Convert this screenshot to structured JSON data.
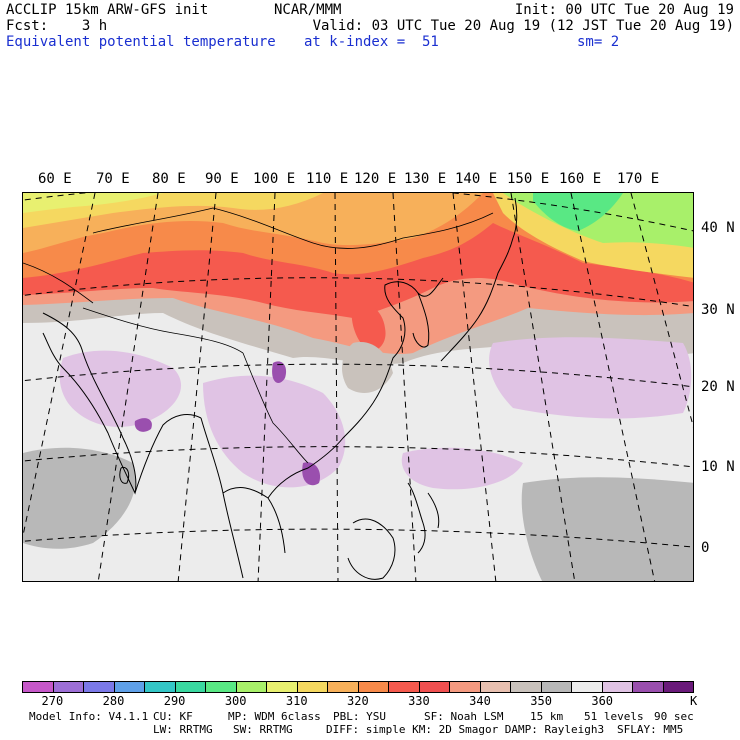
{
  "header": {
    "model": "ACCLIP 15km ARW-GFS init",
    "forecast": "Fcst:    3 h",
    "field": "Equivalent potential temperature",
    "center": "NCAR/MMM",
    "init": "Init: 00 UTC Tue 20 Aug 19",
    "valid": "Valid: 03 UTC Tue 20 Aug 19 (12 JST Tue 20 Aug 19)",
    "level": "at k-index =  51",
    "smoothing": "sm= 2"
  },
  "map": {
    "lon_labels": [
      "60 E",
      "70 E",
      "80 E",
      "90 E",
      "100 E",
      "110 E",
      "120 E",
      "130 E",
      "140 E",
      "150 E",
      "160 E",
      "170 E"
    ],
    "lat_labels": [
      "40 N",
      "30 N",
      "20 N",
      "10 N",
      "0"
    ],
    "ocean_color": "#ececec"
  },
  "colorbar": {
    "colors": [
      "#c658c9",
      "#9d6fd6",
      "#7b79e8",
      "#5fa0e8",
      "#34c6c6",
      "#3ad8a0",
      "#59e884",
      "#a8f06a",
      "#e8f070",
      "#f5d860",
      "#f7b05a",
      "#f78a4a",
      "#f55a4e",
      "#f05050",
      "#f49a80",
      "#e8c0b0",
      "#c9c2bc",
      "#b8b8b8",
      "#ececec",
      "#e0c3e4",
      "#9a4fae",
      "#6a1a7a"
    ],
    "labels": [
      "270",
      "280",
      "290",
      "300",
      "310",
      "320",
      "330",
      "340",
      "350",
      "360"
    ],
    "unit": "K"
  },
  "footer": {
    "line1": [
      "Model Info: V4.1.1",
      "CU: KF",
      "MP: WDM 6class",
      "PBL: YSU",
      "SF: Noah LSM",
      "15 km",
      "51 levels",
      "90 sec"
    ],
    "line2": [
      "LW: RRTMG",
      "SW: RRTMG",
      "DIFF: simple KM: 2D Smagor DAMP: Rayleigh3",
      "SFLAY: MM5"
    ]
  }
}
